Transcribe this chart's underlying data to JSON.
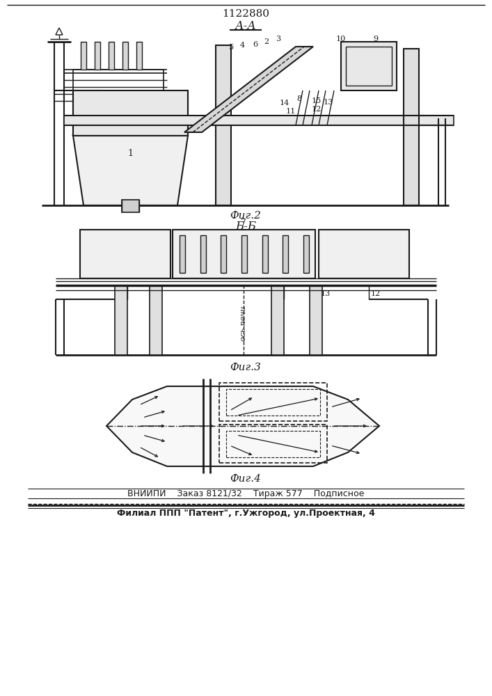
{
  "patent_number": "1122880",
  "section_label_aa": "А-А",
  "section_label_bb": "Б-Б",
  "fig2_label": "Фиг.2",
  "fig3_label": "Фиг.3",
  "fig4_label": "Фиг.4",
  "footer_line1": "ВНИИПИ    Заказ 8121/32    Тираж 577    Подписное",
  "footer_line2": "Филиал ППП \"Патент\", г.Ужгород, ул.Проектная, 4",
  "fig3_text": "ось печи",
  "bg_color": "#ffffff",
  "line_color": "#1a1a1a"
}
